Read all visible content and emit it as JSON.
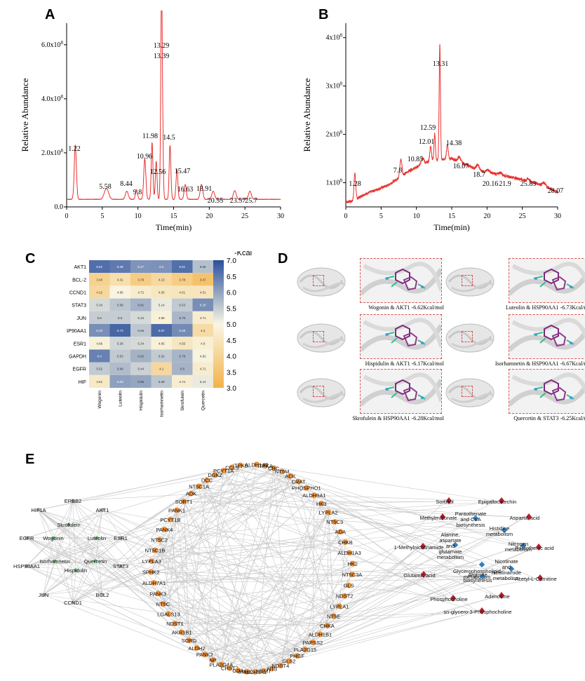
{
  "panels": {
    "A": "A",
    "B": "B",
    "C": "C",
    "D": "D",
    "E": "E"
  },
  "chart_data": [
    {
      "type": "line",
      "panel": "A",
      "xlabel": "Time(min)",
      "ylabel": "Relative Abundance",
      "xlim": [
        0,
        30
      ],
      "ylim": [
        0,
        680000000.0
      ],
      "xticks": [
        "0",
        "5",
        "10",
        "15",
        "20",
        "25",
        "30"
      ],
      "yticks": [
        {
          "value": 0,
          "label": "0.0"
        },
        {
          "value": 200000000.0,
          "label": "2.0x10",
          "exp": "8"
        },
        {
          "value": 400000000.0,
          "label": "4.0x10",
          "exp": "8"
        },
        {
          "value": 600000000.0,
          "label": "6.0x10",
          "exp": "8"
        }
      ],
      "color": "#e8312f",
      "baseline": 28000000.0,
      "peaks": [
        {
          "rt": 1.22,
          "h": 200000000.0,
          "w": 0.15
        },
        {
          "rt": 5.58,
          "h": 40000000.0,
          "w": 0.3
        },
        {
          "rt": 8.44,
          "h": 30000000.0,
          "w": 0.2
        },
        {
          "rt": 9.8,
          "h": 35000000.0,
          "w": 0.15
        },
        {
          "rt": 10.96,
          "h": 150000000.0,
          "w": 0.15
        },
        {
          "rt": 11.98,
          "h": 210000000.0,
          "w": 0.12
        },
        {
          "rt": 12.56,
          "h": 140000000.0,
          "w": 0.12
        },
        {
          "rt": 13.29,
          "h": 560000000.0,
          "w": 0.11
        },
        {
          "rt": 13.39,
          "h": 300000000.0,
          "w": 0.12
        },
        {
          "rt": 14.5,
          "h": 200000000.0,
          "w": 0.12
        },
        {
          "rt": 15.47,
          "h": 110000000.0,
          "w": 0.13
        },
        {
          "rt": 16.63,
          "h": 55000000.0,
          "w": 0.15
        },
        {
          "rt": 18.91,
          "h": 55000000.0,
          "w": 0.18
        },
        {
          "rt": 20.55,
          "h": 30000000.0,
          "w": 0.2
        },
        {
          "rt": 23.57,
          "h": 32000000.0,
          "w": 0.2
        },
        {
          "rt": 25.7,
          "h": 30000000.0,
          "w": 0.2
        }
      ],
      "peak_labels": [
        "1.22",
        "5.58",
        "8.44",
        "9.8",
        "10.96",
        "11.98",
        "12.56",
        "13.29",
        "13.39",
        "14.5",
        "15.47",
        "16.63",
        "18.91",
        "20.55",
        "23.57",
        "25.7"
      ]
    },
    {
      "type": "line",
      "panel": "B",
      "xlabel": "Time(min)",
      "ylabel": "Relative Abundance",
      "xlim": [
        0,
        30
      ],
      "ylim": [
        50000000.0,
        430000000.0
      ],
      "xticks": [
        "0",
        "5",
        "10",
        "15",
        "20",
        "25",
        "30"
      ],
      "yticks": [
        {
          "value": 100000000.0,
          "label": "1x10",
          "exp": "8"
        },
        {
          "value": 200000000.0,
          "label": "2x10",
          "exp": "8"
        },
        {
          "value": 300000000.0,
          "label": "3x10",
          "exp": "8"
        },
        {
          "value": 400000000.0,
          "label": "4x10",
          "exp": "8"
        }
      ],
      "color": "#e8312f",
      "baseline_profile": [
        [
          0,
          60000000.0
        ],
        [
          1.0,
          62000000.0
        ],
        [
          2.5,
          75000000.0
        ],
        [
          6.0,
          95000000.0
        ],
        [
          9.0,
          125000000.0
        ],
        [
          12.0,
          145000000.0
        ],
        [
          15.0,
          150000000.0
        ],
        [
          19.0,
          125000000.0
        ],
        [
          24.0,
          110000000.0
        ],
        [
          28.0,
          95000000.0
        ],
        [
          30.0,
          80000000.0
        ]
      ],
      "peaks": [
        {
          "rt": 1.28,
          "h": 55000000.0,
          "w": 0.12
        },
        {
          "rt": 7.8,
          "h": 35000000.0,
          "w": 0.15
        },
        {
          "rt": 10.85,
          "h": 15000000.0,
          "w": 0.2
        },
        {
          "rt": 12.01,
          "h": 30000000.0,
          "w": 0.12
        },
        {
          "rt": 12.59,
          "h": 55000000.0,
          "w": 0.1
        },
        {
          "rt": 13.31,
          "h": 240000000.0,
          "w": 0.09
        },
        {
          "rt": 14.38,
          "h": 30000000.0,
          "w": 0.12
        },
        {
          "rt": 16.07,
          "h": 10000000.0,
          "w": 0.2
        },
        {
          "rt": 18.7,
          "h": 10000000.0,
          "w": 0.2
        },
        {
          "rt": 20.16,
          "h": 5000000.0,
          "w": 0.2
        },
        {
          "rt": 21.9,
          "h": 5000000.0,
          "w": 0.2
        },
        {
          "rt": 25.83,
          "h": 5000000.0,
          "w": 0.2
        },
        {
          "rt": 28.07,
          "h": 5000000.0,
          "w": 0.2
        }
      ],
      "peak_labels": [
        "1.28",
        "7.8",
        "10.85",
        "12.01",
        "12.59",
        "13.31",
        "14.38",
        "16.07",
        "18.7",
        "20.16",
        "21.9",
        "25.83",
        "28.07"
      ]
    },
    {
      "type": "heatmap",
      "panel": "C",
      "legend_title": "-Kcal",
      "colorbar_range": [
        3.0,
        7.0
      ],
      "colorbar_ticks": [
        "7.0",
        "6.5",
        "6.0",
        "5.5",
        "5.0",
        "4.5",
        "4.0",
        "3.5",
        "3.0"
      ],
      "colors": {
        "low": "#f4b247",
        "mid": "#f8f6e4",
        "high": "#2a4f9c"
      },
      "rows": [
        "AKT1",
        "BCL-2",
        "CCND1",
        "STAT3",
        "JUN",
        "HSP90AA1",
        "ESR1",
        "GAPDH",
        "EGFR",
        "HIF"
      ],
      "columns": [
        "Wogonin",
        "Luteolin",
        "Hispidulin",
        "Isorhamnetin",
        "Skrofulein",
        "Quercetin"
      ],
      "values": [
        [
          6.62,
          6.48,
          6.17,
          6.2,
          6.61,
          5.65
        ],
        [
          3.94,
          4.31,
          3.78,
          4.13,
          3.78,
          3.47
        ],
        [
          4.12,
          4.95,
          4.72,
          4.56,
          4.51,
          4.51
        ],
        [
          5.34,
          5.58,
          5.81,
          5.14,
          5.53,
          6.25
        ],
        [
          5.5,
          5.5,
          5.34,
          4.86,
          5.75,
          4.71
        ],
        [
          6.23,
          6.73,
          5.56,
          6.67,
          6.28,
          4.2
        ],
        [
          4.86,
          5.38,
          5.34,
          4.85,
          4.55,
          4.8
        ],
        [
          6.4,
          5.53,
          5.82,
          5.52,
          5.78,
          4.92
        ],
        [
          5.52,
          5.69,
          5.44,
          4.1,
          5.8,
          4.71
        ],
        [
          4.61,
          6.03,
          5.96,
          5.58,
          4.74,
          5.14
        ]
      ]
    }
  ],
  "docking": [
    {
      "caption": "Wogonin & AKT1 -6.62Kcal/mol"
    },
    {
      "caption": "Luteolin & HSP90AA1 -6.73Kcal/mol"
    },
    {
      "caption": "Hispidulin & AKT1 -6.17Kcal/mol"
    },
    {
      "caption": "Isorhamnetin & HSP90AA1 -6.67Kcal/mol"
    },
    {
      "caption": "Skrofulein & HSP90AA1 -6.28Kcal/mol"
    },
    {
      "caption": "Quercetin & STAT3 -6.25Kcal/mol"
    }
  ],
  "network": {
    "ingredients": [
      "Skrofulein",
      "Wogonin",
      "Luteolin",
      "Isorhamnetin",
      "Quercetin",
      "Hispidulin"
    ],
    "targets": [
      "HIF1A",
      "ERBB2",
      "AKT1",
      "EGFR",
      "ESR1",
      "HSP90AA1",
      "STAT3",
      "JUN",
      "BCL2",
      "CCND1"
    ],
    "genes": [
      "ITPKB",
      "CCL5",
      "PCYT1A",
      "DGKZ",
      "DCC",
      "NT5C1A",
      "ADK",
      "SORT1",
      "PANK1",
      "PCYT1B",
      "PANK4",
      "NT5C2",
      "NT5C1B",
      "LYPLA3",
      "SPHK2",
      "ALDH7A1",
      "PANK3",
      "NT5C",
      "LGALS13",
      "NDST1",
      "AKR1B1",
      "SORD",
      "ALDH2",
      "PANK2",
      "NP",
      "PLA2G4A",
      "CHST7",
      "GDA",
      "SPHK1",
      "ALDH3A1",
      "NNMT",
      "NT3",
      "NDST4",
      "GLS2",
      "PHGF",
      "PLA2G15",
      "PAPSS2",
      "ALDH1B1",
      "CHKA",
      "NT5E",
      "LYPLA1",
      "NDST2",
      "GLS",
      "NT5C3A",
      "HK2",
      "ALDH1A3",
      "CHKB",
      "ADA",
      "NT5C3",
      "LYPLA2",
      "HK3",
      "ALDH9A1",
      "PHOSPHO1",
      "CRAT",
      "ACK",
      "NT5M",
      "CBC",
      "ITPKA",
      "ALDH1A2"
    ],
    "metabolites": [
      "Sorbitol",
      "Epigallocatechin",
      "Methylmalonate",
      "Aspartic acid",
      "1-Methylnicotinamide",
      "Pantothenic acid",
      "Glutamic acid",
      "Acetyl-L-Carnitine",
      "Adenosine",
      "Phosphocholine",
      "sn-glycero-3-Phosphocholine"
    ],
    "pathways": [
      "Pantothenate and CoA biosynthesis",
      "Histidine metabolism",
      "Alanine, aspartate and glutamate metabolism",
      "Nitrogen metabolism",
      "Glycerophospholipid metabolism",
      "Nicotinate and nicotinamide metabolism",
      "Arginine biosynthesis"
    ]
  }
}
